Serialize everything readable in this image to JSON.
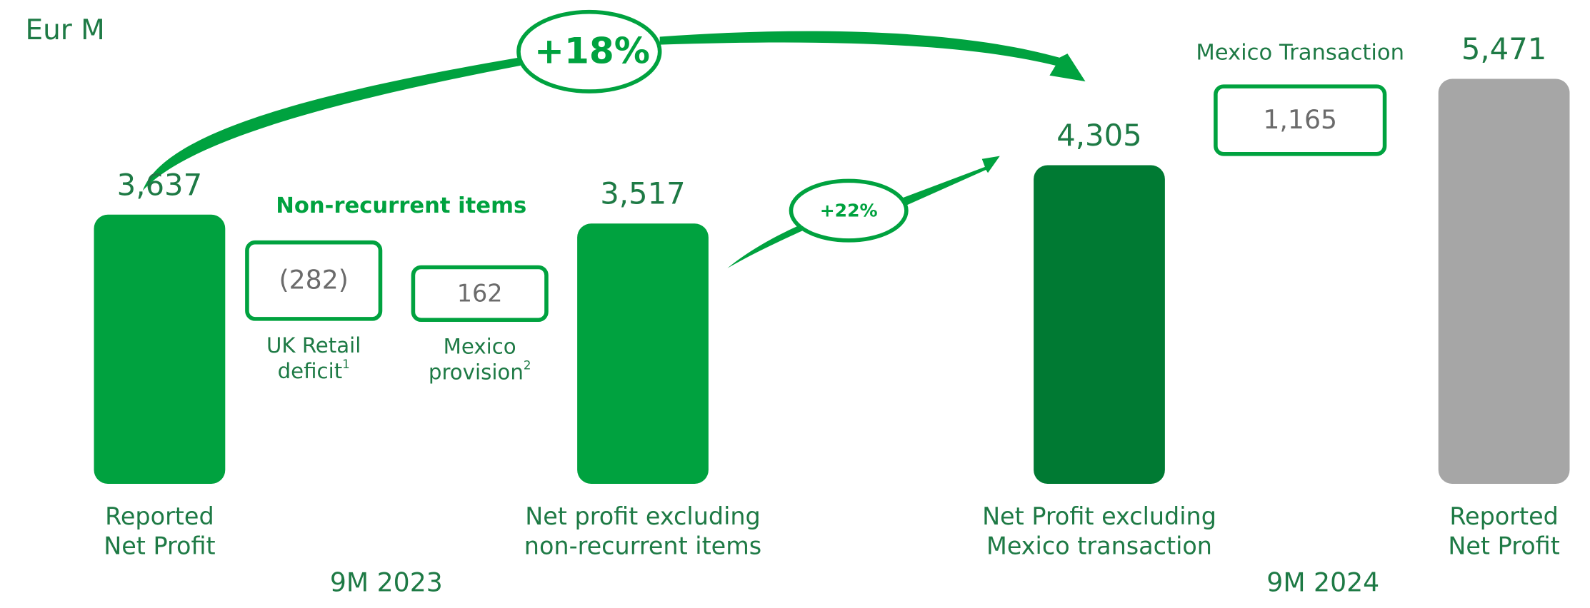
{
  "chart_data": {
    "type": "waterfall",
    "unit_label": "Eur M",
    "categories": [
      [
        "Reported",
        "Net Profit"
      ],
      [
        "Net profit excluding",
        "non-recurrent items"
      ],
      [
        "Net Profit excluding",
        "Mexico transaction"
      ],
      [
        "Reported",
        "Net Profit"
      ]
    ],
    "values": [
      3637,
      3517,
      4305,
      5471
    ],
    "value_labels": [
      "3,637",
      "3,517",
      "4,305",
      "5,471"
    ],
    "colors": [
      "#00a23f",
      "#00a23f",
      "#007a33",
      "#a6a6a6"
    ],
    "adjustments": {
      "title": "Non-recurrent items",
      "items": [
        {
          "name": [
            "UK Retail",
            "deficit"
          ],
          "footnote": "1",
          "value": -282,
          "value_label": "(282)"
        },
        {
          "name": [
            "Mexico",
            "provision"
          ],
          "footnote": "2",
          "value": 162,
          "value_label": "162"
        }
      ]
    },
    "mexico": {
      "name": "Mexico Transaction",
      "value": 1165,
      "value_label": "1,165"
    },
    "growth": [
      "+18%",
      "+22%"
    ],
    "periods": [
      "9M 2023",
      "9M 2024"
    ]
  }
}
